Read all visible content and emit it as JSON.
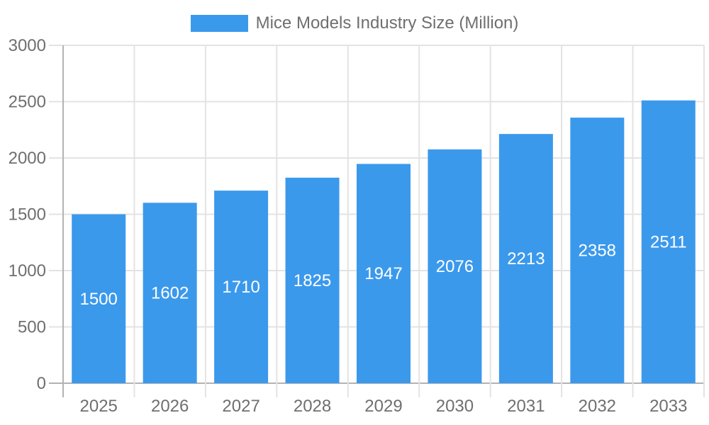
{
  "chart_data": {
    "type": "bar",
    "title": "Mice Models Industry Size (Million)",
    "legend": {
      "label": "Mice Models Industry Size (Million)",
      "position": "top-center"
    },
    "categories": [
      "2025",
      "2026",
      "2027",
      "2028",
      "2029",
      "2030",
      "2031",
      "2032",
      "2033"
    ],
    "series": [
      {
        "name": "Mice Models Industry Size (Million)",
        "values": [
          1500,
          1602,
          1710,
          1825,
          1947,
          2076,
          2213,
          2358,
          2511
        ]
      }
    ],
    "xlabel": "",
    "ylabel": "",
    "ylim": [
      0,
      3000
    ],
    "yticks": [
      0,
      500,
      1000,
      1500,
      2000,
      2500,
      3000
    ],
    "grid": true,
    "data_labels": {
      "position": "center-of-bar",
      "color": "#ffffff"
    },
    "colors": {
      "bar": "#3B99EC",
      "grid_line": "#e3e3e3",
      "axis_line": "#b3b3b3",
      "tick_text": "#6f6f6f",
      "background": "#ffffff"
    }
  }
}
